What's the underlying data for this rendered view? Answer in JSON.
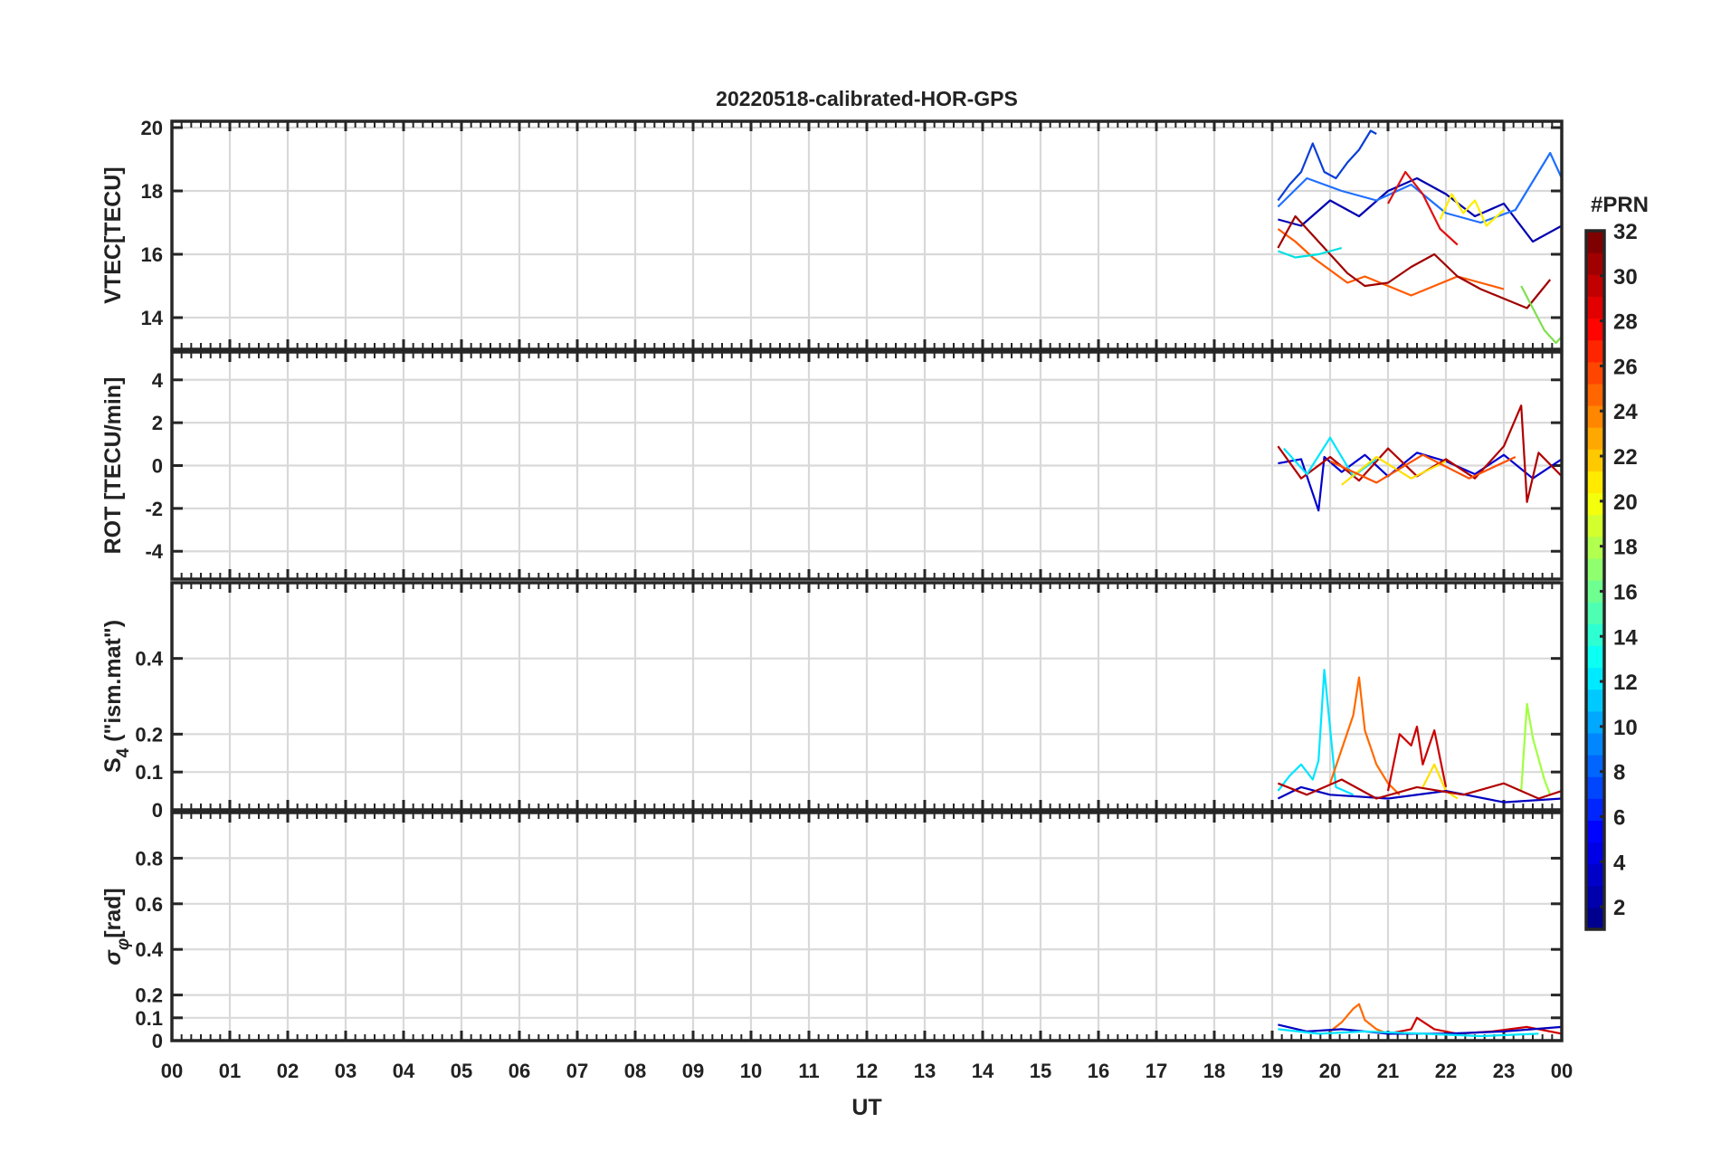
{
  "chart_data": {
    "type": "line",
    "title": "20220518-calibrated-HOR-GPS",
    "xlabel": "UT",
    "x_ticks": [
      "00",
      "01",
      "02",
      "03",
      "04",
      "05",
      "06",
      "07",
      "08",
      "09",
      "10",
      "11",
      "12",
      "13",
      "14",
      "15",
      "16",
      "17",
      "18",
      "19",
      "20",
      "21",
      "22",
      "23",
      "00"
    ],
    "xlim": [
      0,
      24
    ],
    "grid": true,
    "data_interval_hours": [
      19.1,
      24.0
    ],
    "colorbar": {
      "label": "#PRN",
      "range": [
        1,
        32
      ],
      "ticks": [
        "2",
        "4",
        "6",
        "8",
        "10",
        "12",
        "14",
        "16",
        "18",
        "20",
        "22",
        "24",
        "26",
        "28",
        "30",
        "32"
      ],
      "colormap": "jet",
      "colors": [
        "#00008f",
        "#0000ff",
        "#007fff",
        "#00ffff",
        "#7fff7f",
        "#ffff00",
        "#ff7f00",
        "#ff0000",
        "#7f0000"
      ]
    },
    "panels": [
      {
        "ylabel": "VTEC[TECU]",
        "ylim": [
          13,
          20.2
        ],
        "yticks": [
          "14",
          "16",
          "18",
          "20"
        ],
        "series": [
          {
            "color": "#0a3fd6",
            "x": [
              19.1,
              19.3,
              19.5,
              19.7,
              19.9,
              20.1,
              20.3,
              20.5,
              20.7,
              20.8
            ],
            "y": [
              17.7,
              18.2,
              18.6,
              19.5,
              18.6,
              18.4,
              18.9,
              19.3,
              19.9,
              19.8
            ]
          },
          {
            "color": "#0000b0",
            "x": [
              19.1,
              19.5,
              20.0,
              20.5,
              21.0,
              21.5,
              22.0,
              22.5,
              23.0,
              23.5,
              24.0
            ],
            "y": [
              17.1,
              16.9,
              17.7,
              17.2,
              18.0,
              18.4,
              17.9,
              17.2,
              17.6,
              16.4,
              16.9
            ]
          },
          {
            "color": "#1f6fff",
            "x": [
              19.1,
              19.6,
              20.2,
              20.8,
              21.4,
              22.0,
              22.6,
              23.2,
              23.8,
              24.0
            ],
            "y": [
              17.5,
              18.4,
              18.0,
              17.7,
              18.2,
              17.3,
              17.0,
              17.4,
              19.2,
              18.4
            ]
          },
          {
            "color": "#ff5a00",
            "x": [
              19.1,
              19.4,
              19.7,
              20.0,
              20.3,
              20.6,
              21.0,
              21.4,
              21.8,
              22.2,
              22.6,
              23.0
            ],
            "y": [
              16.8,
              16.4,
              15.9,
              15.5,
              15.1,
              15.3,
              15.0,
              14.7,
              15.0,
              15.3,
              15.1,
              14.9
            ]
          },
          {
            "color": "#a00000",
            "x": [
              19.1,
              19.4,
              19.7,
              20.0,
              20.3,
              20.6,
              21.0,
              21.4,
              21.8,
              22.2,
              22.6,
              23.0,
              23.4,
              23.8
            ],
            "y": [
              16.2,
              17.2,
              16.6,
              16.0,
              15.4,
              15.0,
              15.1,
              15.6,
              16.0,
              15.3,
              14.9,
              14.6,
              14.3,
              15.2
            ]
          },
          {
            "color": "#ffee00",
            "x": [
              21.9,
              22.1,
              22.3,
              22.5,
              22.7,
              23.0
            ],
            "y": [
              17.1,
              17.9,
              17.3,
              17.7,
              16.9,
              17.4
            ]
          },
          {
            "color": "#7fdf4f",
            "x": [
              23.3,
              23.5,
              23.7,
              23.9,
              24.0
            ],
            "y": [
              15.0,
              14.3,
              13.6,
              13.2,
              13.4
            ]
          },
          {
            "color": "#00e0e0",
            "x": [
              19.1,
              19.4,
              19.8,
              20.2
            ],
            "y": [
              16.1,
              15.9,
              16.0,
              16.2
            ]
          },
          {
            "color": "#e01010",
            "x": [
              21.0,
              21.3,
              21.6,
              21.9,
              22.2
            ],
            "y": [
              17.6,
              18.6,
              17.9,
              16.8,
              16.3
            ]
          }
        ]
      },
      {
        "ylabel": "ROT [TECU/min]",
        "ylim": [
          -5.3,
          5.3
        ],
        "yticks": [
          "-4",
          "-2",
          "0",
          "2",
          "4"
        ],
        "series": [
          {
            "color": "#0000d0",
            "x": [
              19.1,
              19.5,
              19.8,
              19.9,
              20.2,
              20.6,
              21.0,
              21.5,
              22.0,
              22.5,
              23.0,
              23.5,
              24.0
            ],
            "y": [
              0.1,
              0.3,
              -2.1,
              0.4,
              -0.3,
              0.5,
              -0.5,
              0.6,
              0.2,
              -0.4,
              0.5,
              -0.6,
              0.3
            ]
          },
          {
            "color": "#b00000",
            "x": [
              19.1,
              19.5,
              20.0,
              20.5,
              21.0,
              21.5,
              22.0,
              22.5,
              23.0,
              23.3,
              23.4,
              23.6,
              24.0
            ],
            "y": [
              0.9,
              -0.6,
              0.4,
              -0.7,
              0.8,
              -0.5,
              0.3,
              -0.6,
              0.9,
              2.8,
              -1.7,
              0.6,
              -0.5
            ]
          },
          {
            "color": "#00e5ff",
            "x": [
              19.2,
              19.6,
              20.0,
              20.4,
              20.8
            ],
            "y": [
              0.8,
              -0.4,
              1.3,
              -0.5,
              0.3
            ]
          },
          {
            "color": "#ffe000",
            "x": [
              20.2,
              20.8,
              21.4,
              22.0
            ],
            "y": [
              -0.9,
              0.4,
              -0.6,
              0.2
            ]
          },
          {
            "color": "#ff5000",
            "x": [
              20.0,
              20.8,
              21.6,
              22.4,
              23.2
            ],
            "y": [
              0.2,
              -0.8,
              0.5,
              -0.6,
              0.4
            ]
          }
        ]
      },
      {
        "ylabel": "S4 (\"ism.mat\")",
        "ylabel_main": "S",
        "ylabel_sub": "4",
        "ylabel_rest": " (\"ism.mat\")",
        "ylim": [
          0,
          0.6
        ],
        "yticks": [
          "0",
          "0.1",
          "0.2",
          "0.4"
        ],
        "series": [
          {
            "color": "#00e5ff",
            "x": [
              19.1,
              19.3,
              19.5,
              19.7,
              19.8,
              19.9,
              20.1,
              20.4
            ],
            "y": [
              0.05,
              0.09,
              0.12,
              0.08,
              0.13,
              0.37,
              0.06,
              0.04
            ]
          },
          {
            "color": "#ff6a00",
            "x": [
              20.0,
              20.2,
              20.4,
              20.5,
              20.6,
              20.8,
              21.0,
              21.2
            ],
            "y": [
              0.07,
              0.16,
              0.25,
              0.35,
              0.21,
              0.12,
              0.07,
              0.04
            ]
          },
          {
            "color": "#cc0000",
            "x": [
              21.0,
              21.2,
              21.4,
              21.5,
              21.6,
              21.8,
              22.0
            ],
            "y": [
              0.05,
              0.2,
              0.17,
              0.22,
              0.12,
              0.21,
              0.06
            ]
          },
          {
            "color": "#ffe000",
            "x": [
              21.6,
              21.8,
              22.0,
              22.2
            ],
            "y": [
              0.06,
              0.12,
              0.05,
              0.03
            ]
          },
          {
            "color": "#a0ff40",
            "x": [
              23.3,
              23.4,
              23.5,
              23.7,
              23.8
            ],
            "y": [
              0.05,
              0.28,
              0.19,
              0.08,
              0.04
            ]
          },
          {
            "color": "#0000c0",
            "x": [
              19.1,
              19.5,
              20.0,
              21.0,
              22.0,
              23.0,
              24.0
            ],
            "y": [
              0.03,
              0.06,
              0.04,
              0.03,
              0.05,
              0.02,
              0.03
            ]
          },
          {
            "color": "#b00000",
            "x": [
              19.1,
              19.6,
              20.2,
              20.8,
              21.5,
              22.3,
              23.0,
              23.6,
              24.0
            ],
            "y": [
              0.07,
              0.04,
              0.08,
              0.03,
              0.06,
              0.04,
              0.07,
              0.03,
              0.05
            ]
          }
        ]
      },
      {
        "ylabel": "σφ[rad]",
        "ylabel_main": "σ",
        "ylabel_sub": "φ",
        "ylabel_rest": "[rad]",
        "ylim": [
          0,
          1
        ],
        "yticks": [
          "0",
          "0.1",
          "0.2",
          "0.4",
          "0.6",
          "0.8"
        ],
        "series": [
          {
            "color": "#ff6a00",
            "x": [
              20.0,
              20.2,
              20.4,
              20.5,
              20.6,
              20.8,
              21.0
            ],
            "y": [
              0.04,
              0.08,
              0.14,
              0.16,
              0.09,
              0.05,
              0.03
            ]
          },
          {
            "color": "#cc0000",
            "x": [
              21.0,
              21.4,
              21.5,
              21.8,
              22.2,
              22.8,
              23.4,
              24.0
            ],
            "y": [
              0.03,
              0.05,
              0.1,
              0.05,
              0.03,
              0.04,
              0.06,
              0.03
            ]
          },
          {
            "color": "#0000c0",
            "x": [
              19.1,
              19.6,
              20.2,
              21.0,
              22.0,
              23.0,
              24.0
            ],
            "y": [
              0.07,
              0.04,
              0.05,
              0.03,
              0.03,
              0.04,
              0.06
            ]
          },
          {
            "color": "#00e5ff",
            "x": [
              19.1,
              19.8,
              20.6,
              21.6,
              22.6,
              23.6
            ],
            "y": [
              0.05,
              0.03,
              0.04,
              0.03,
              0.02,
              0.03
            ]
          }
        ]
      }
    ]
  }
}
